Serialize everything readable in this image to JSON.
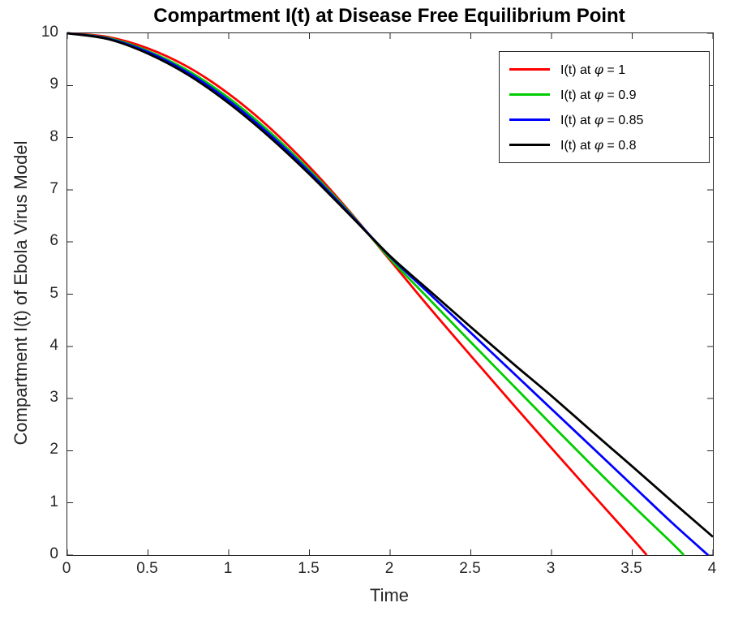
{
  "chart_data": {
    "type": "line",
    "title": "Compartment I(t) at Disease Free Equilibrium Point",
    "xlabel": "Time",
    "ylabel": "Compartment I(t) of Ebola Virus Model",
    "xlim": [
      0,
      4
    ],
    "ylim": [
      0,
      10
    ],
    "xticks": [
      0,
      0.5,
      1,
      1.5,
      2,
      2.5,
      3,
      3.5,
      4
    ],
    "xtick_labels": [
      "0",
      "0.5",
      "1",
      "1.5",
      "2",
      "2.5",
      "3",
      "3.5",
      "4"
    ],
    "yticks": [
      0,
      1,
      2,
      3,
      4,
      5,
      6,
      7,
      8,
      9,
      10
    ],
    "ytick_labels": [
      "0",
      "1",
      "2",
      "3",
      "4",
      "5",
      "6",
      "7",
      "8",
      "9",
      "10"
    ],
    "grid": false,
    "box": true,
    "tick_dir": "in",
    "tick_length": 7,
    "axis_color": "#262626",
    "line_width": 2.8,
    "legend_position": "top-right",
    "series": [
      {
        "name": "I(t) at φ = 1",
        "color": "#ff0000",
        "x": [
          0,
          0.25,
          0.5,
          0.75,
          1,
          1.25,
          1.5,
          1.75,
          2,
          2.25,
          2.5,
          2.75,
          3,
          3.25,
          3.5,
          3.59
        ],
        "y": [
          10,
          9.93,
          9.71,
          9.35,
          8.84,
          8.2,
          7.44,
          6.58,
          5.65,
          4.72,
          3.82,
          2.93,
          2.05,
          1.18,
          0.32,
          0
        ]
      },
      {
        "name": "I(t) at φ = 0.9",
        "color": "#00cc00",
        "x": [
          0,
          0.25,
          0.5,
          0.75,
          1,
          1.25,
          1.5,
          1.75,
          2,
          2.25,
          2.5,
          2.75,
          3,
          3.25,
          3.5,
          3.75,
          3.82
        ],
        "y": [
          10,
          9.91,
          9.66,
          9.28,
          8.76,
          8.12,
          7.38,
          6.56,
          5.68,
          4.88,
          4.08,
          3.29,
          2.5,
          1.72,
          0.96,
          0.22,
          0
        ]
      },
      {
        "name": "I(t) at φ = 0.85",
        "color": "#0000ff",
        "x": [
          0,
          0.25,
          0.5,
          0.75,
          1,
          1.25,
          1.5,
          1.75,
          2,
          2.25,
          2.5,
          2.75,
          3,
          3.25,
          3.5,
          3.75,
          3.97
        ],
        "y": [
          10,
          9.9,
          9.64,
          9.24,
          8.71,
          8.07,
          7.34,
          6.54,
          5.72,
          4.99,
          4.26,
          3.53,
          2.8,
          2.07,
          1.34,
          0.61,
          0
        ]
      },
      {
        "name": "I(t) at φ = 0.8",
        "color": "#000000",
        "x": [
          0,
          0.25,
          0.5,
          0.75,
          1,
          1.25,
          1.5,
          1.75,
          2,
          2.25,
          2.5,
          2.75,
          3,
          3.25,
          3.5,
          3.75,
          4
        ],
        "y": [
          10,
          9.89,
          9.61,
          9.2,
          8.66,
          8.02,
          7.3,
          6.52,
          5.73,
          5.05,
          4.37,
          3.7,
          3.05,
          2.37,
          1.7,
          1.02,
          0.35
        ]
      }
    ]
  }
}
